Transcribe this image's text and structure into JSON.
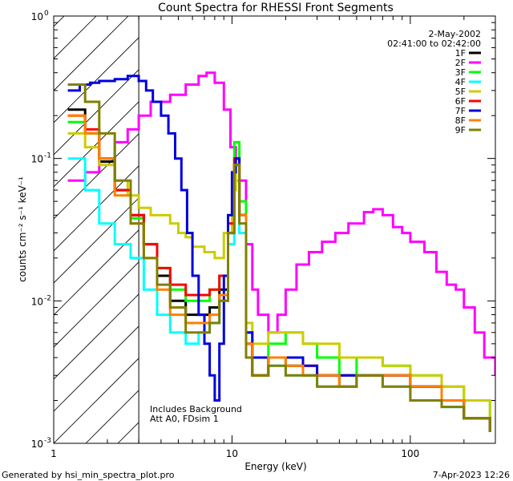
{
  "chart_data": {
    "type": "line",
    "title": "Count Spectra for RHESSI Front Segments",
    "xlabel": "Energy (keV)",
    "ylabel": "counts cm⁻² s⁻¹ keV⁻¹",
    "xscale": "log",
    "yscale": "log",
    "xlim": [
      1,
      300
    ],
    "ylim": [
      0.001,
      1
    ],
    "xticks": [
      {
        "v": 1,
        "label": "1"
      },
      {
        "v": 10,
        "label": "10"
      },
      {
        "v": 100,
        "label": "100"
      }
    ],
    "yticks": [
      {
        "v": 1,
        "base": "10",
        "exp": "0"
      },
      {
        "v": 0.1,
        "base": "10",
        "exp": "-1"
      },
      {
        "v": 0.01,
        "base": "10",
        "exp": "-2"
      },
      {
        "v": 0.001,
        "base": "10",
        "exp": "-3"
      }
    ],
    "date": "2-May-2002",
    "time_range": "02:41:00 to 02:42:00",
    "attenuator_threshold_kev": 3,
    "annotations": [
      "Includes Background",
      "Att A0, FDsim 1"
    ],
    "series": [
      {
        "name": "1F",
        "color": "#000000",
        "points": [
          [
            1.2,
            0.22
          ],
          [
            1.5,
            0.15
          ],
          [
            1.8,
            0.095
          ],
          [
            2.2,
            0.06
          ],
          [
            2.7,
            0.04
          ],
          [
            3.2,
            0.025
          ],
          [
            3.8,
            0.015
          ],
          [
            4.5,
            0.01
          ],
          [
            5.5,
            0.008
          ],
          [
            6.5,
            0.008
          ],
          [
            7.5,
            0.009
          ],
          [
            8.5,
            0.012
          ],
          [
            9.5,
            0.03
          ],
          [
            10.3,
            0.09
          ],
          [
            11,
            0.04
          ],
          [
            12,
            0.005
          ],
          [
            13,
            0.003
          ],
          [
            16,
            0.004
          ],
          [
            20,
            0.0035
          ],
          [
            25,
            0.003
          ],
          [
            30,
            0.003
          ],
          [
            40,
            0.0025
          ],
          [
            50,
            0.003
          ],
          [
            70,
            0.003
          ],
          [
            100,
            0.0025
          ],
          [
            150,
            0.002
          ],
          [
            200,
            0.0015
          ],
          [
            280,
            0.0012
          ]
        ]
      },
      {
        "name": "2F",
        "color": "#ff00ff",
        "points": [
          [
            1.2,
            0.07
          ],
          [
            1.5,
            0.08
          ],
          [
            1.8,
            0.1
          ],
          [
            2.2,
            0.13
          ],
          [
            2.6,
            0.16
          ],
          [
            3,
            0.2
          ],
          [
            3.5,
            0.25
          ],
          [
            4.5,
            0.28
          ],
          [
            5.5,
            0.33
          ],
          [
            6.5,
            0.38
          ],
          [
            7.2,
            0.4
          ],
          [
            8,
            0.34
          ],
          [
            9,
            0.22
          ],
          [
            9.8,
            0.12
          ],
          [
            10.5,
            0.09
          ],
          [
            11,
            0.07
          ],
          [
            12,
            0.025
          ],
          [
            13,
            0.012
          ],
          [
            14,
            0.008
          ],
          [
            16,
            0.006
          ],
          [
            18,
            0.008
          ],
          [
            20,
            0.012
          ],
          [
            23,
            0.018
          ],
          [
            27,
            0.022
          ],
          [
            32,
            0.026
          ],
          [
            38,
            0.03
          ],
          [
            45,
            0.035
          ],
          [
            55,
            0.042
          ],
          [
            62,
            0.044
          ],
          [
            70,
            0.04
          ],
          [
            80,
            0.033
          ],
          [
            90,
            0.03
          ],
          [
            100,
            0.026
          ],
          [
            120,
            0.022
          ],
          [
            140,
            0.016
          ],
          [
            160,
            0.013
          ],
          [
            180,
            0.012
          ],
          [
            200,
            0.009
          ],
          [
            230,
            0.006
          ],
          [
            260,
            0.004
          ],
          [
            300,
            0.003
          ]
        ]
      },
      {
        "name": "3F",
        "color": "#00ff00",
        "points": [
          [
            1.2,
            0.18
          ],
          [
            1.5,
            0.15
          ],
          [
            1.8,
            0.1
          ],
          [
            2.2,
            0.06
          ],
          [
            2.7,
            0.038
          ],
          [
            3.2,
            0.025
          ],
          [
            3.8,
            0.017
          ],
          [
            4.5,
            0.012
          ],
          [
            5.5,
            0.01
          ],
          [
            6.5,
            0.01
          ],
          [
            7.5,
            0.012
          ],
          [
            8.5,
            0.015
          ],
          [
            9.5,
            0.04
          ],
          [
            10.3,
            0.13
          ],
          [
            11,
            0.05
          ],
          [
            12,
            0.006
          ],
          [
            13,
            0.004
          ],
          [
            16,
            0.005
          ],
          [
            20,
            0.006
          ],
          [
            25,
            0.005
          ],
          [
            30,
            0.004
          ],
          [
            40,
            0.003
          ],
          [
            50,
            0.004
          ],
          [
            70,
            0.0035
          ],
          [
            100,
            0.003
          ],
          [
            150,
            0.0025
          ],
          [
            200,
            0.002
          ],
          [
            280,
            0.0015
          ]
        ]
      },
      {
        "name": "4F",
        "color": "#00ffff",
        "points": [
          [
            1.2,
            0.1
          ],
          [
            1.5,
            0.06
          ],
          [
            1.8,
            0.035
          ],
          [
            2.2,
            0.025
          ],
          [
            2.7,
            0.02
          ],
          [
            3.2,
            0.012
          ],
          [
            3.8,
            0.008
          ],
          [
            4.5,
            0.006
          ],
          [
            5.5,
            0.005
          ],
          [
            6.5,
            0.006
          ],
          [
            7.5,
            0.007
          ],
          [
            8.5,
            0.01
          ],
          [
            9.5,
            0.025
          ],
          [
            10.3,
            0.07
          ],
          [
            11,
            0.03
          ],
          [
            12,
            0.004
          ],
          [
            13,
            0.003
          ],
          [
            16,
            0.0035
          ],
          [
            20,
            0.003
          ],
          [
            25,
            0.003
          ],
          [
            30,
            0.0025
          ],
          [
            40,
            0.0025
          ],
          [
            50,
            0.003
          ],
          [
            70,
            0.0025
          ],
          [
            100,
            0.002
          ],
          [
            150,
            0.0018
          ],
          [
            200,
            0.0015
          ],
          [
            280,
            0.0012
          ]
        ]
      },
      {
        "name": "5F",
        "color": "#cccc00",
        "points": [
          [
            1.2,
            0.15
          ],
          [
            1.5,
            0.12
          ],
          [
            1.8,
            0.09
          ],
          [
            2.2,
            0.07
          ],
          [
            2.6,
            0.055
          ],
          [
            3,
            0.045
          ],
          [
            3.5,
            0.04
          ],
          [
            4,
            0.04
          ],
          [
            4.5,
            0.035
          ],
          [
            5,
            0.03
          ],
          [
            5.5,
            0.028
          ],
          [
            6,
            0.024
          ],
          [
            7,
            0.022
          ],
          [
            8,
            0.02
          ],
          [
            9,
            0.03
          ],
          [
            10,
            0.06
          ],
          [
            10.5,
            0.1
          ],
          [
            11,
            0.04
          ],
          [
            12,
            0.007
          ],
          [
            13,
            0.005
          ],
          [
            16,
            0.006
          ],
          [
            20,
            0.006
          ],
          [
            25,
            0.005
          ],
          [
            30,
            0.005
          ],
          [
            40,
            0.004
          ],
          [
            50,
            0.004
          ],
          [
            70,
            0.0035
          ],
          [
            100,
            0.003
          ],
          [
            150,
            0.0025
          ],
          [
            200,
            0.002
          ],
          [
            280,
            0.0015
          ]
        ]
      },
      {
        "name": "6F",
        "color": "#ff0000",
        "points": [
          [
            1.2,
            0.2
          ],
          [
            1.5,
            0.16
          ],
          [
            1.8,
            0.1
          ],
          [
            2.2,
            0.06
          ],
          [
            2.7,
            0.04
          ],
          [
            3.2,
            0.025
          ],
          [
            3.8,
            0.017
          ],
          [
            4.5,
            0.013
          ],
          [
            5.5,
            0.011
          ],
          [
            6.5,
            0.011
          ],
          [
            7.5,
            0.012
          ],
          [
            8.5,
            0.015
          ],
          [
            9.5,
            0.035
          ],
          [
            10.3,
            0.1
          ],
          [
            11,
            0.04
          ],
          [
            12,
            0.005
          ],
          [
            13,
            0.003
          ],
          [
            16,
            0.004
          ],
          [
            20,
            0.004
          ],
          [
            25,
            0.0035
          ],
          [
            30,
            0.003
          ],
          [
            40,
            0.003
          ],
          [
            50,
            0.003
          ],
          [
            70,
            0.003
          ],
          [
            100,
            0.0025
          ],
          [
            150,
            0.002
          ],
          [
            200,
            0.0015
          ],
          [
            280,
            0.0012
          ]
        ]
      },
      {
        "name": "7F",
        "color": "#0000dd",
        "points": [
          [
            1.2,
            0.3
          ],
          [
            1.4,
            0.33
          ],
          [
            1.6,
            0.34
          ],
          [
            1.8,
            0.35
          ],
          [
            2.2,
            0.36
          ],
          [
            2.6,
            0.38
          ],
          [
            3,
            0.35
          ],
          [
            3.3,
            0.3
          ],
          [
            3.6,
            0.25
          ],
          [
            4,
            0.2
          ],
          [
            4.4,
            0.15
          ],
          [
            4.8,
            0.1
          ],
          [
            5.2,
            0.06
          ],
          [
            5.6,
            0.03
          ],
          [
            6,
            0.015
          ],
          [
            6.5,
            0.008
          ],
          [
            7,
            0.005
          ],
          [
            7.5,
            0.003
          ],
          [
            8,
            0.002
          ],
          [
            8.5,
            0.005
          ],
          [
            9,
            0.015
          ],
          [
            9.5,
            0.04
          ],
          [
            10,
            0.08
          ],
          [
            10.5,
            0.1
          ],
          [
            11,
            0.04
          ],
          [
            12,
            0.006
          ],
          [
            13,
            0.004
          ],
          [
            16,
            0.004
          ],
          [
            20,
            0.004
          ],
          [
            25,
            0.0035
          ],
          [
            30,
            0.003
          ],
          [
            40,
            0.003
          ],
          [
            50,
            0.003
          ],
          [
            70,
            0.003
          ],
          [
            100,
            0.0025
          ],
          [
            150,
            0.002
          ],
          [
            200,
            0.0015
          ],
          [
            280,
            0.0012
          ]
        ]
      },
      {
        "name": "8F",
        "color": "#ff8000",
        "points": [
          [
            1.2,
            0.2
          ],
          [
            1.5,
            0.15
          ],
          [
            1.8,
            0.1
          ],
          [
            2.2,
            0.055
          ],
          [
            2.7,
            0.035
          ],
          [
            3.2,
            0.02
          ],
          [
            3.8,
            0.012
          ],
          [
            4.5,
            0.008
          ],
          [
            5.5,
            0.007
          ],
          [
            6.5,
            0.007
          ],
          [
            7.5,
            0.008
          ],
          [
            8.5,
            0.011
          ],
          [
            9.5,
            0.03
          ],
          [
            10.3,
            0.09
          ],
          [
            11,
            0.04
          ],
          [
            12,
            0.005
          ],
          [
            13,
            0.003
          ],
          [
            16,
            0.004
          ],
          [
            20,
            0.0035
          ],
          [
            25,
            0.003
          ],
          [
            30,
            0.003
          ],
          [
            40,
            0.0025
          ],
          [
            50,
            0.003
          ],
          [
            70,
            0.003
          ],
          [
            100,
            0.0025
          ],
          [
            150,
            0.002
          ],
          [
            200,
            0.0015
          ],
          [
            280,
            0.0012
          ]
        ]
      },
      {
        "name": "9F",
        "color": "#808000",
        "points": [
          [
            1.2,
            0.33
          ],
          [
            1.5,
            0.25
          ],
          [
            1.8,
            0.15
          ],
          [
            2.2,
            0.07
          ],
          [
            2.7,
            0.035
          ],
          [
            3.2,
            0.02
          ],
          [
            3.8,
            0.013
          ],
          [
            4.5,
            0.009
          ],
          [
            5.5,
            0.006
          ],
          [
            6.5,
            0.006
          ],
          [
            7.5,
            0.007
          ],
          [
            8.5,
            0.01
          ],
          [
            9.5,
            0.03
          ],
          [
            10.3,
            0.09
          ],
          [
            11,
            0.035
          ],
          [
            12,
            0.004
          ],
          [
            13,
            0.003
          ],
          [
            16,
            0.0035
          ],
          [
            20,
            0.003
          ],
          [
            25,
            0.003
          ],
          [
            30,
            0.0025
          ],
          [
            40,
            0.0025
          ],
          [
            50,
            0.003
          ],
          [
            70,
            0.0025
          ],
          [
            100,
            0.002
          ],
          [
            150,
            0.0018
          ],
          [
            200,
            0.0015
          ],
          [
            280,
            0.0012
          ]
        ]
      }
    ]
  },
  "footer": {
    "generated_by": "Generated by hsi_min_spectra_plot.pro",
    "timestamp": "7-Apr-2023 12:26"
  }
}
